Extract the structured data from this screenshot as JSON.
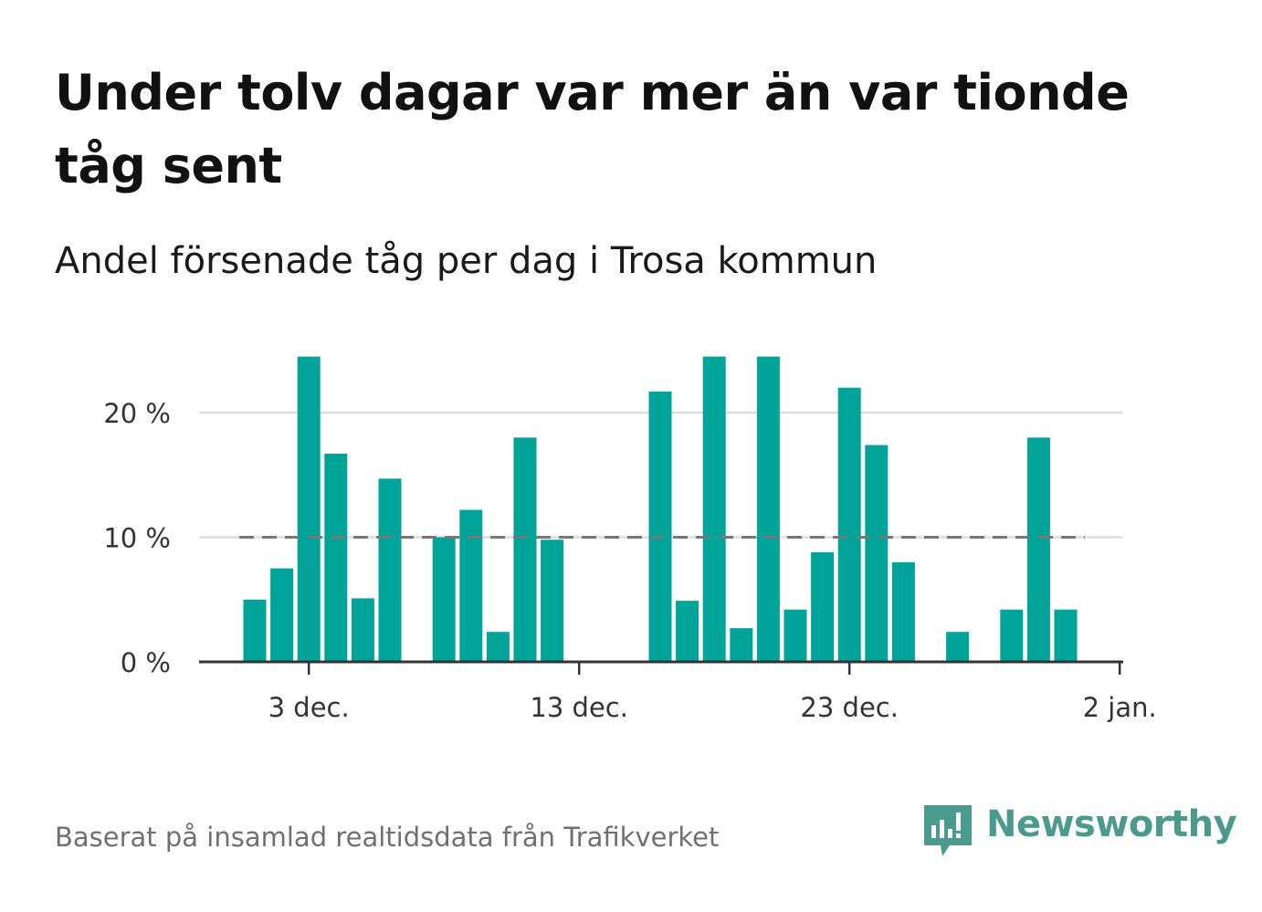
{
  "title": "Under tolv dagar var mer än var tionde tåg sent",
  "subtitle": "Andel försenade tåg per dag i Trosa kommun",
  "footer": "Baserat på insamlad realtidsdata från Trafikverket",
  "brand": {
    "name": "Newsworthy",
    "color": "#4a9a8e"
  },
  "colors": {
    "bar": "#00a499",
    "grid": "#dddddd",
    "axis": "#333333",
    "reference_line": "#777777"
  },
  "chart_data": {
    "type": "bar",
    "title": "Andel försenade tåg per dag i Trosa kommun",
    "xlabel": "",
    "ylabel": "",
    "ylim": [
      0,
      25
    ],
    "grid": true,
    "x_ticks": [
      {
        "date": "2023-12-03",
        "label": "3 dec."
      },
      {
        "date": "2023-12-13",
        "label": "13 dec."
      },
      {
        "date": "2023-12-23",
        "label": "23 dec."
      },
      {
        "date": "2024-01-02",
        "label": "2 jan."
      }
    ],
    "y_ticks": [
      {
        "value": 0,
        "label": "0 %"
      },
      {
        "value": 10,
        "label": "10 %"
      },
      {
        "value": 20,
        "label": "20 %"
      }
    ],
    "reference_line": {
      "value": 10,
      "style": "dashed"
    },
    "x": [
      "2023-12-01",
      "2023-12-02",
      "2023-12-03",
      "2023-12-04",
      "2023-12-05",
      "2023-12-06",
      "2023-12-07",
      "2023-12-08",
      "2023-12-09",
      "2023-12-10",
      "2023-12-11",
      "2023-12-12",
      "2023-12-13",
      "2023-12-14",
      "2023-12-15",
      "2023-12-16",
      "2023-12-17",
      "2023-12-18",
      "2023-12-19",
      "2023-12-20",
      "2023-12-21",
      "2023-12-22",
      "2023-12-23",
      "2023-12-24",
      "2023-12-25",
      "2023-12-26",
      "2023-12-27",
      "2023-12-28",
      "2023-12-29",
      "2023-12-30",
      "2023-12-31",
      "2024-01-01"
    ],
    "values": [
      5.0,
      7.5,
      24.5,
      16.7,
      5.1,
      14.7,
      0,
      10.0,
      12.2,
      2.4,
      18.0,
      9.8,
      0,
      0,
      0,
      21.7,
      4.9,
      24.5,
      2.7,
      24.5,
      4.2,
      8.8,
      22.0,
      17.4,
      8.0,
      0,
      2.4,
      0,
      4.2,
      18.0,
      4.2,
      0
    ]
  }
}
